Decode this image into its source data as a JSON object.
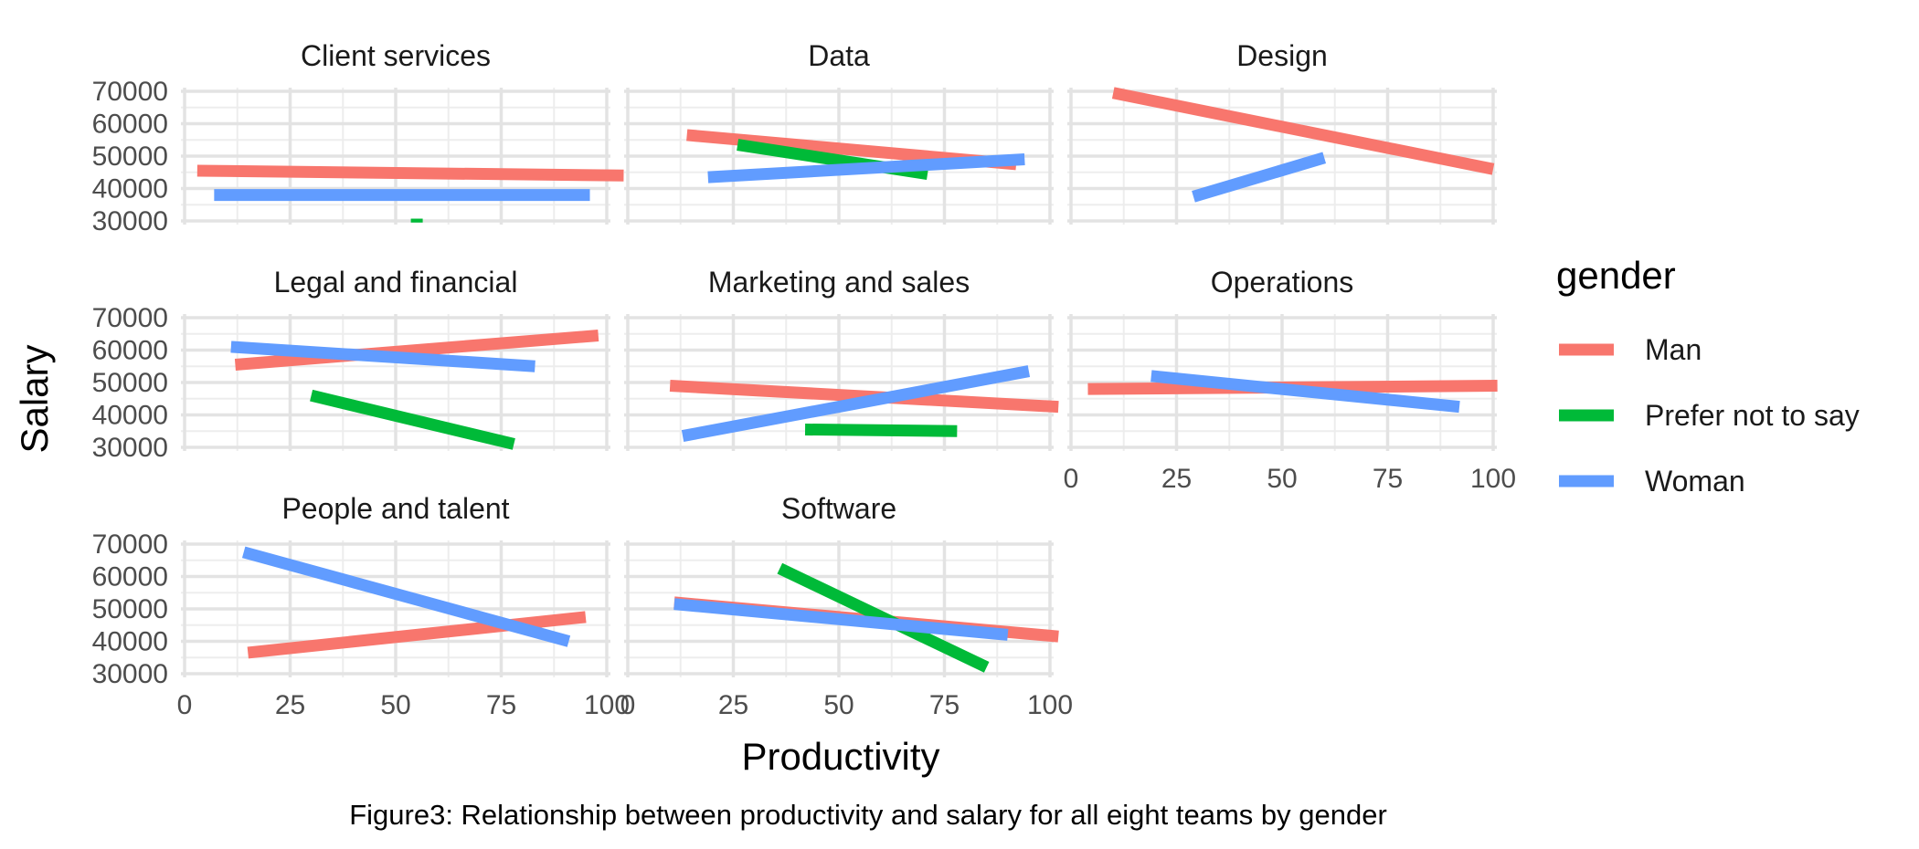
{
  "chart_data": {
    "type": "line",
    "xlabel": "Productivity",
    "ylabel": "Salary",
    "caption": "Figure3: Relationship between productivity and salary for all eight teams by gender",
    "xlim": [
      0,
      100
    ],
    "ylim": [
      30000,
      70000
    ],
    "x_ticks": [
      0,
      25,
      50,
      75,
      100
    ],
    "y_ticks": [
      30000,
      40000,
      50000,
      60000,
      70000
    ],
    "grid": true,
    "legend": {
      "title": "gender",
      "placement": "right",
      "entries": [
        {
          "name": "Man",
          "color": "#F8766D"
        },
        {
          "name": "Prefer not to say",
          "color": "#00BA38"
        },
        {
          "name": "Woman",
          "color": "#619CFF"
        }
      ]
    },
    "facets": [
      {
        "title": "Client services",
        "series": [
          {
            "name": "Man",
            "x": [
              3,
              104
            ],
            "y": [
              45500,
              44000
            ]
          },
          {
            "name": "Woman",
            "x": [
              7,
              96
            ],
            "y": [
              38000,
              38000
            ]
          },
          {
            "name": "Prefer not to say",
            "x": [
              55,
              55
            ],
            "y": [
              29500,
              30700
            ]
          }
        ]
      },
      {
        "title": "Data",
        "series": [
          {
            "name": "Man",
            "x": [
              14,
              92
            ],
            "y": [
              56500,
              47500
            ]
          },
          {
            "name": "Prefer not to say",
            "x": [
              26,
              71
            ],
            "y": [
              53500,
              44500
            ]
          },
          {
            "name": "Woman",
            "x": [
              19,
              94
            ],
            "y": [
              43500,
              49000
            ]
          }
        ]
      },
      {
        "title": "Design",
        "series": [
          {
            "name": "Man",
            "x": [
              10,
              100
            ],
            "y": [
              69500,
              46000
            ]
          },
          {
            "name": "Woman",
            "x": [
              29,
              60
            ],
            "y": [
              37500,
              49500
            ]
          }
        ]
      },
      {
        "title": "Legal and financial",
        "series": [
          {
            "name": "Man",
            "x": [
              12,
              98
            ],
            "y": [
              55500,
              64500
            ]
          },
          {
            "name": "Prefer not to say",
            "x": [
              30,
              78
            ],
            "y": [
              46000,
              31000
            ]
          },
          {
            "name": "Woman",
            "x": [
              11,
              83
            ],
            "y": [
              61000,
              55000
            ]
          }
        ]
      },
      {
        "title": "Marketing and sales",
        "series": [
          {
            "name": "Man",
            "x": [
              10,
              102
            ],
            "y": [
              49000,
              42500
            ]
          },
          {
            "name": "Prefer not to say",
            "x": [
              42,
              78
            ],
            "y": [
              35500,
              35000
            ]
          },
          {
            "name": "Woman",
            "x": [
              13,
              95
            ],
            "y": [
              33500,
              53500
            ]
          }
        ]
      },
      {
        "title": "Operations",
        "series": [
          {
            "name": "Man",
            "x": [
              4,
              101
            ],
            "y": [
              48000,
              49000
            ]
          },
          {
            "name": "Woman",
            "x": [
              19,
              92
            ],
            "y": [
              52000,
              42500
            ]
          }
        ]
      },
      {
        "title": "People and talent",
        "series": [
          {
            "name": "Man",
            "x": [
              15,
              95
            ],
            "y": [
              36500,
              47500
            ]
          },
          {
            "name": "Woman",
            "x": [
              14,
              91
            ],
            "y": [
              67500,
              40000
            ]
          }
        ]
      },
      {
        "title": "Software",
        "series": [
          {
            "name": "Man",
            "x": [
              11,
              102
            ],
            "y": [
              52000,
              41500
            ]
          },
          {
            "name": "Prefer not to say",
            "x": [
              36,
              85
            ],
            "y": [
              62500,
              32000
            ]
          },
          {
            "name": "Woman",
            "x": [
              11,
              90
            ],
            "y": [
              51500,
              42000
            ]
          }
        ]
      }
    ]
  }
}
